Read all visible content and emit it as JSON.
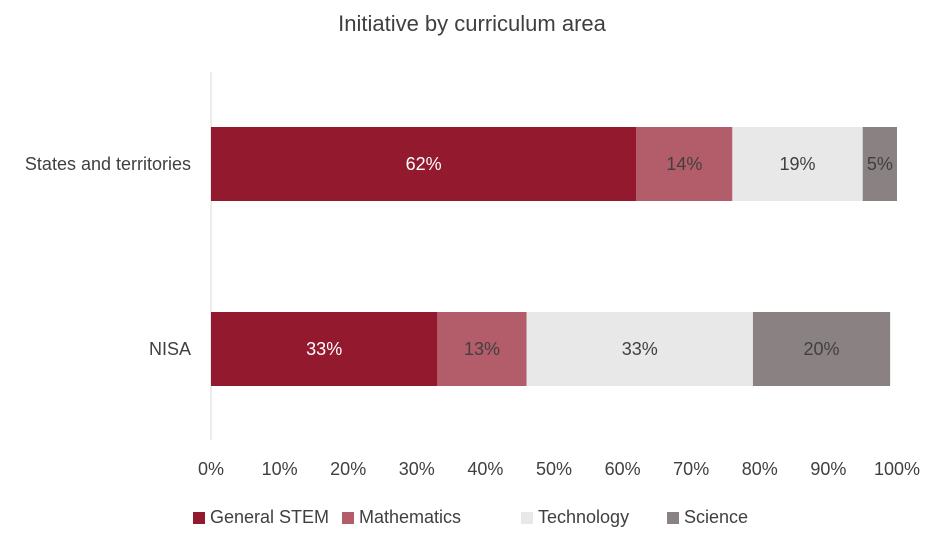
{
  "chart_data": {
    "type": "bar",
    "orientation": "horizontal",
    "stacked": true,
    "title": "Initiative by curriculum area",
    "categories": [
      "States and territories",
      "NISA"
    ],
    "series": [
      {
        "name": "General STEM",
        "values": [
          62,
          33
        ],
        "labels": [
          "62%",
          "33%"
        ],
        "color": "#931a2e",
        "label_color": "#ffffff"
      },
      {
        "name": "Mathematics",
        "values": [
          14,
          13
        ],
        "labels": [
          "14%",
          "13%"
        ],
        "color": "#b35c6a",
        "label_color": "#404040"
      },
      {
        "name": "Technology",
        "values": [
          19,
          33
        ],
        "labels": [
          "19%",
          "33%"
        ],
        "color": "#e8e8e8",
        "label_color": "#404040"
      },
      {
        "name": "Science",
        "values": [
          5,
          20
        ],
        "labels": [
          "5%",
          "20%"
        ],
        "color": "#8a8282",
        "label_color": "#404040"
      }
    ],
    "x_ticks": [
      "0%",
      "10%",
      "20%",
      "30%",
      "40%",
      "50%",
      "60%",
      "70%",
      "80%",
      "90%",
      "100%"
    ],
    "xlim": [
      0,
      100
    ],
    "grid": false,
    "legend_position": "bottom"
  }
}
